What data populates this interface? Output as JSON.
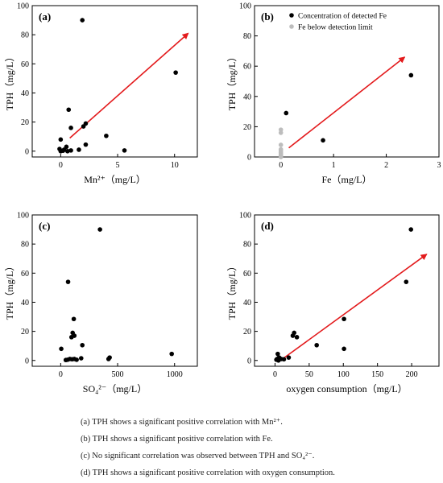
{
  "chart_data": [
    {
      "type": "scatter",
      "panel_label": "(a)",
      "xlabel": "Mn²⁺（mg/L）",
      "ylabel": "TPH（mg/L）",
      "xlim": [
        -2.5,
        12
      ],
      "ylim": [
        -4,
        100
      ],
      "xticks": [
        0,
        5,
        10
      ],
      "yticks": [
        0,
        20,
        40,
        60,
        80,
        100
      ],
      "series": [
        {
          "marker_color": "#000000",
          "points": [
            [
              1.9,
              90
            ],
            [
              10.1,
              54
            ],
            [
              0.7,
              28.5
            ],
            [
              2.2,
              19
            ],
            [
              2.0,
              17
            ],
            [
              0.9,
              16
            ],
            [
              4.0,
              10.5
            ],
            [
              0.0,
              8
            ],
            [
              2.2,
              4.5
            ],
            [
              0.5,
              3
            ],
            [
              -0.1,
              1.5
            ],
            [
              0.3,
              1
            ],
            [
              0.0,
              0
            ],
            [
              0.6,
              0
            ],
            [
              0.9,
              0.5
            ],
            [
              1.6,
              1
            ],
            [
              5.6,
              0.5
            ],
            [
              0.2,
              0.3
            ]
          ]
        }
      ],
      "trend_arrow": {
        "color": "#e31a1c",
        "from": [
          0.8,
          9
        ],
        "to": [
          11.2,
          81
        ]
      }
    },
    {
      "type": "scatter",
      "panel_label": "(b)",
      "xlabel": "Fe（mg/L）",
      "ylabel": "TPH（mg/L）",
      "xlim": [
        -0.5,
        3
      ],
      "ylim": [
        0,
        100
      ],
      "xticks": [
        0,
        1,
        2,
        3
      ],
      "yticks": [
        0,
        20,
        40,
        60,
        80,
        100
      ],
      "legend_position": "top-right",
      "series": [
        {
          "name": "Concentration of detected Fe",
          "marker_color": "#000000",
          "points": [
            [
              0.1,
              29
            ],
            [
              0.8,
              11
            ],
            [
              2.47,
              54
            ]
          ]
        },
        {
          "name": "Fe below detection limit",
          "marker_color": "#bdbdbd",
          "points": [
            [
              0.0,
              18
            ],
            [
              0.0,
              16
            ],
            [
              0.0,
              8
            ],
            [
              0.0,
              5
            ],
            [
              0.0,
              4
            ],
            [
              0.0,
              3
            ],
            [
              0.0,
              2
            ],
            [
              0.0,
              1
            ],
            [
              0.0,
              0.5
            ],
            [
              0.0,
              0
            ]
          ]
        }
      ],
      "trend_arrow": {
        "color": "#e31a1c",
        "from": [
          0.15,
          6
        ],
        "to": [
          2.35,
          66
        ]
      }
    },
    {
      "type": "scatter",
      "panel_label": "(c)",
      "xlabel": "SO₄²⁻（mg/L）",
      "ylabel": "TPH（mg/L）",
      "xlim": [
        -250,
        1200
      ],
      "ylim": [
        -4,
        100
      ],
      "xticks": [
        0,
        500,
        1000
      ],
      "yticks": [
        0,
        20,
        40,
        60,
        80,
        100
      ],
      "series": [
        {
          "marker_color": "#000000",
          "points": [
            [
              345,
              90
            ],
            [
              65,
              54
            ],
            [
              115,
              28.5
            ],
            [
              105,
              19
            ],
            [
              120,
              17
            ],
            [
              95,
              16
            ],
            [
              190,
              10.5
            ],
            [
              5,
              8
            ],
            [
              975,
              4.5
            ],
            [
              430,
              2
            ],
            [
              420,
              1
            ],
            [
              180,
              1.5
            ],
            [
              120,
              1
            ],
            [
              80,
              1
            ],
            [
              60,
              0.5
            ],
            [
              100,
              0.8
            ],
            [
              140,
              0.5
            ],
            [
              45,
              0.3
            ]
          ]
        }
      ]
    },
    {
      "type": "scatter",
      "panel_label": "(d)",
      "xlabel": "oxygen consumption（mg/L）",
      "ylabel": "TPH（mg/L）",
      "xlim": [
        -30,
        240
      ],
      "ylim": [
        -4,
        100
      ],
      "xticks": [
        0,
        50,
        100,
        150,
        200
      ],
      "yticks": [
        0,
        20,
        40,
        60,
        80,
        100
      ],
      "series": [
        {
          "marker_color": "#000000",
          "points": [
            [
              199,
              90
            ],
            [
              192,
              54
            ],
            [
              101,
              28.5
            ],
            [
              28,
              19
            ],
            [
              26,
              17
            ],
            [
              32,
              16
            ],
            [
              61,
              10.5
            ],
            [
              101,
              8
            ],
            [
              4,
              4.5
            ],
            [
              20,
              2
            ],
            [
              6,
              2
            ],
            [
              3,
              1
            ],
            [
              9,
              1
            ],
            [
              2,
              0.5
            ],
            [
              13,
              0.8
            ],
            [
              5,
              0
            ]
          ]
        }
      ],
      "trend_arrow": {
        "color": "#e31a1c",
        "from": [
          8,
          0
        ],
        "to": [
          222,
          73
        ]
      }
    }
  ],
  "captions": [
    "(a) TPH shows a significant positive correlation with Mn²⁺.",
    "(b) TPH shows a significant positive correlation with Fe.",
    "(c) No significant correlation was observed between TPH and SO₄²⁻.",
    "(d) TPH shows a significant positive correlation with oxygen consumption."
  ]
}
